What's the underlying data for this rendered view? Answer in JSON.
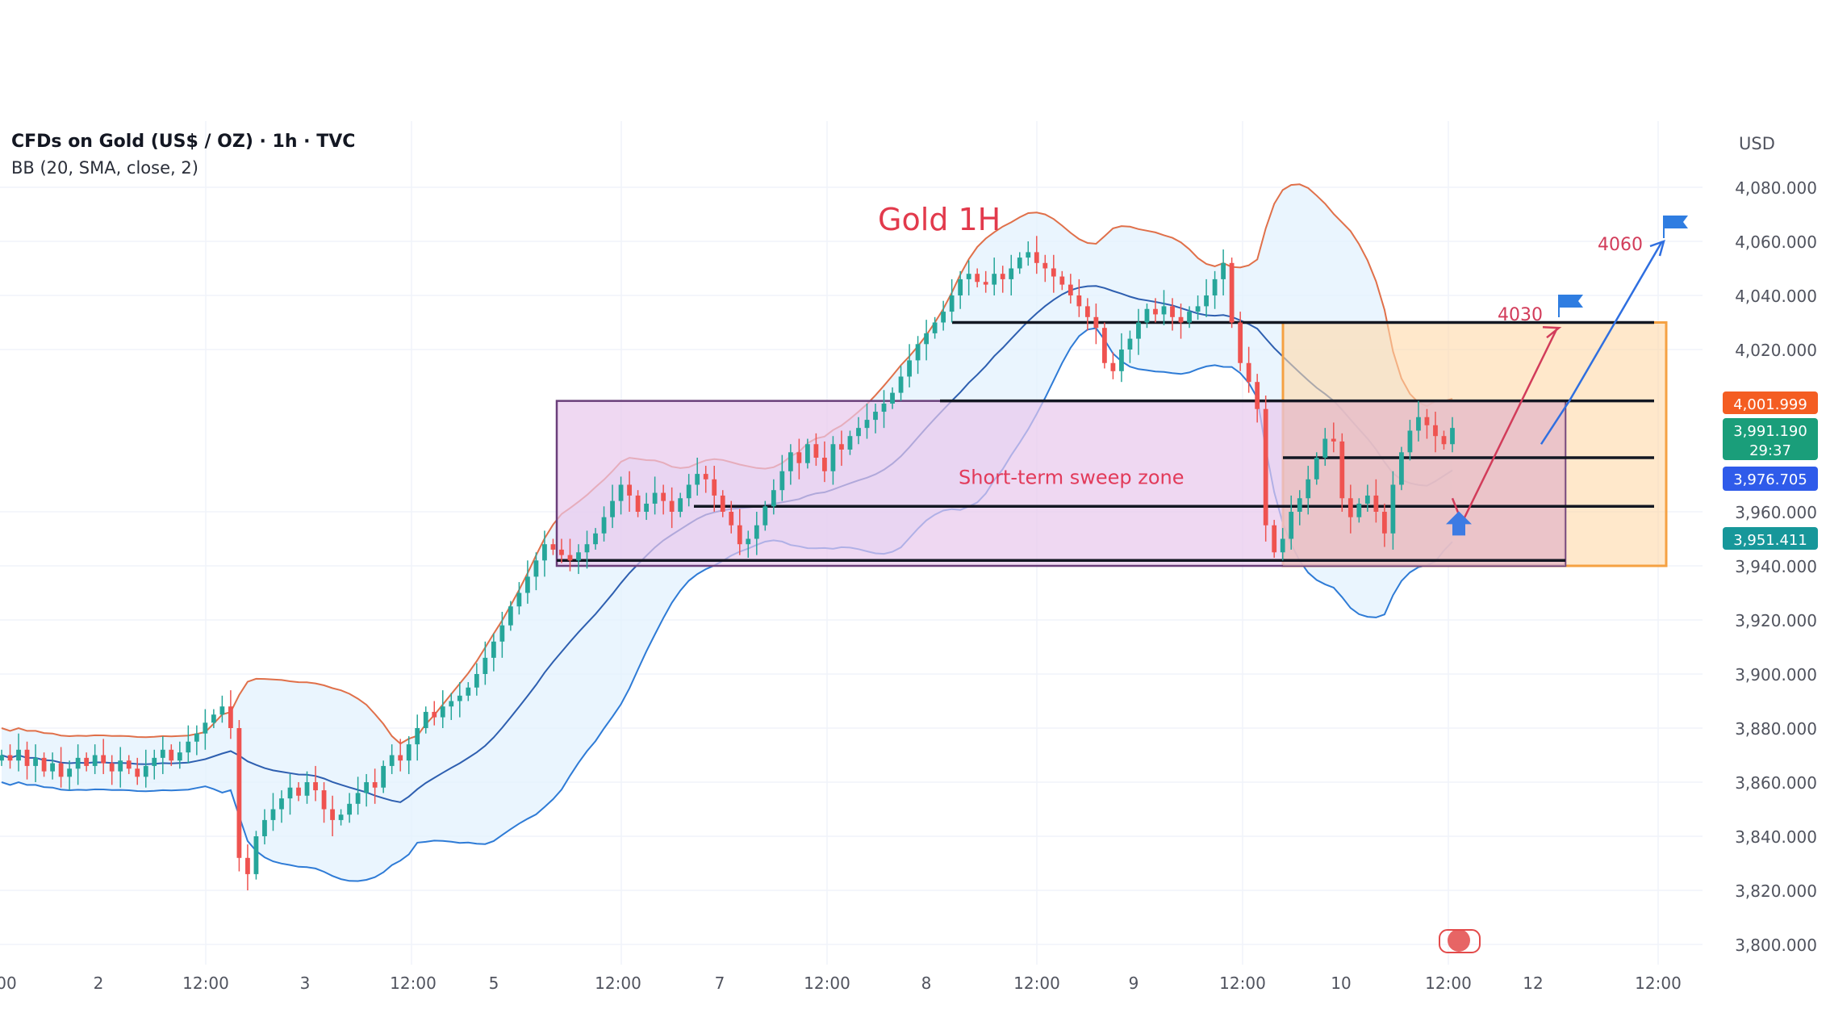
{
  "header": {
    "symbol_line": "CFDs on Gold (US$ / OZ) · 1h · TVC",
    "indicator_line": "BB (20, SMA, close, 2)"
  },
  "currency": "USD",
  "colors": {
    "up": "#26a69a",
    "down": "#ef5350",
    "bb_upper": "#e0704a",
    "bb_basis": "#2e5fb0",
    "bb_lower": "#2e7bd6",
    "bb_fill": "#e3f2fd",
    "zone_fill": "#e8c8ec",
    "zone_border": "#6a3f7a",
    "target_fill": "#ffd9a8",
    "target_border": "#f5a142",
    "flag": "#2f7de1",
    "arrow_red": "#d23c5a",
    "arrow_blue": "#2f6fe0"
  },
  "chart_data": {
    "type": "candlestick",
    "title": "Gold 1H",
    "ylabel": "USD",
    "ylim": [
      3795,
      4080
    ],
    "y_ticks": [
      "4,080.000",
      "4,060.000",
      "4,040.000",
      "4,020.000",
      "3,960.000",
      "3,940.000",
      "3,920.000",
      "3,900.000",
      "3,880.000",
      "3,860.000",
      "3,840.000",
      "3,820.000",
      "3,800.000"
    ],
    "x_ticks": [
      "00",
      "2",
      "12:00",
      "3",
      "12:00",
      "5",
      "12:00",
      "7",
      "12:00",
      "8",
      "12:00",
      "9",
      "12:00",
      "10",
      "12:00",
      "12",
      "12:00"
    ],
    "price_labels": {
      "upper": "4,001.999",
      "last": "3,991.190",
      "countdown": "29:37",
      "lower_blue": "3,976.705",
      "teal": "3,951.411"
    },
    "closes": [
      3870,
      3868,
      3872,
      3866,
      3869,
      3864,
      3867,
      3862,
      3865,
      3869,
      3866,
      3870,
      3867,
      3864,
      3868,
      3865,
      3862,
      3866,
      3869,
      3872,
      3868,
      3871,
      3875,
      3878,
      3882,
      3885,
      3888,
      3880,
      3832,
      3826,
      3840,
      3846,
      3850,
      3854,
      3858,
      3855,
      3860,
      3857,
      3850,
      3846,
      3848,
      3852,
      3856,
      3860,
      3858,
      3866,
      3870,
      3868,
      3874,
      3880,
      3886,
      3884,
      3888,
      3890,
      3892,
      3895,
      3900,
      3906,
      3912,
      3918,
      3925,
      3930,
      3936,
      3942,
      3948,
      3946,
      3944,
      3942,
      3945,
      3948,
      3952,
      3958,
      3964,
      3970,
      3966,
      3960,
      3963,
      3967,
      3964,
      3960,
      3965,
      3970,
      3974,
      3972,
      3966,
      3960,
      3955,
      3948,
      3950,
      3955,
      3962,
      3968,
      3975,
      3982,
      3978,
      3985,
      3980,
      3975,
      3985,
      3983,
      3988,
      3991,
      3994,
      3997,
      4000,
      4004,
      4010,
      4016,
      4022,
      4026,
      4030,
      4034,
      4040,
      4046,
      4048,
      4045,
      4044,
      4048,
      4046,
      4050,
      4054,
      4056,
      4052,
      4050,
      4047,
      4044,
      4040,
      4036,
      4032,
      4028,
      4015,
      4012,
      4020,
      4024,
      4030,
      4035,
      4033,
      4036,
      4032,
      4030,
      4034,
      4036,
      4040,
      4046,
      4052,
      4030,
      4015,
      4008,
      3998,
      3955,
      3945,
      3950,
      3960,
      3965,
      3972,
      3980,
      3987,
      3986,
      3965,
      3958,
      3963,
      3966,
      3960,
      3952,
      3970,
      3982,
      3990,
      3995,
      3992,
      3988,
      3985,
      3991
    ]
  },
  "annotations": {
    "zone_label": "Short-term sweep zone",
    "target_1": "4030",
    "target_2": "4060"
  }
}
